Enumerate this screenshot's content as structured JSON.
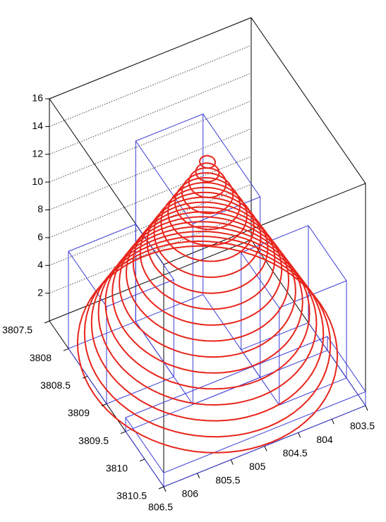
{
  "chart_data": {
    "type": "contour3d",
    "xticks": [
      803.5,
      804,
      804.5,
      805,
      805.5,
      806,
      806.5
    ],
    "yticks": [
      3807.5,
      3808,
      3808.5,
      3809,
      3809.5,
      3810,
      3810.5
    ],
    "zticks": [
      2,
      4,
      6,
      8,
      10,
      12,
      14,
      16
    ],
    "xlim": [
      806.5,
      803.5
    ],
    "ylim": [
      3810.5,
      3807.5
    ],
    "zlim": [
      0,
      16
    ],
    "grid": true,
    "contours": {
      "color": "#e8251c",
      "center": [
        805,
        3809
      ],
      "levels": [
        1,
        1.75,
        2.5,
        3.25,
        4,
        4.75,
        5.5,
        6.25,
        7,
        7.75,
        8.5,
        9.25,
        10,
        10.75,
        11.5,
        12.25,
        13,
        13.75,
        14.5
      ],
      "radii": [
        1.68,
        1.59,
        1.5,
        1.41,
        1.32,
        1.23,
        1.14,
        1.05,
        0.96,
        0.87,
        0.78,
        0.69,
        0.6,
        0.51,
        0.42,
        0.33,
        0.24,
        0.15,
        0.1
      ]
    },
    "bars": {
      "color": "#3b3bd6",
      "x": [
        [
          804.5,
          805.5
        ],
        [
          805.5,
          806.5
        ],
        [
          803.5,
          804.5
        ],
        [
          803.5,
          806.5
        ]
      ],
      "y": [
        [
          3808,
          3809.5
        ],
        [
          3808,
          3809
        ],
        [
          3809,
          3810
        ],
        [
          3809.5,
          3810.5
        ]
      ],
      "z": [
        13,
        7,
        7,
        1
      ]
    }
  }
}
